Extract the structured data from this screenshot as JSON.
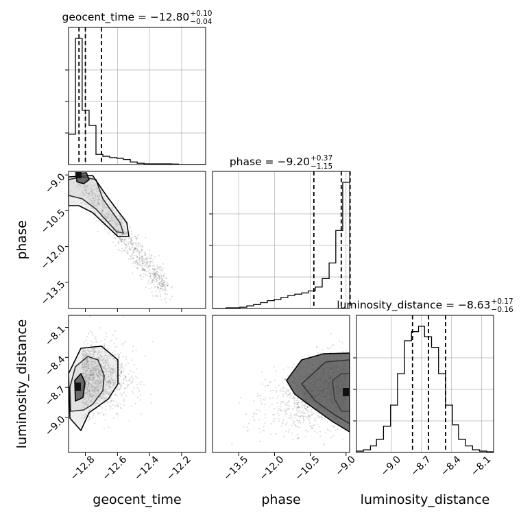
{
  "chart_data": {
    "type": "corner",
    "parameters": [
      "geocent_time",
      "phase",
      "luminosity_distance"
    ],
    "titles": [
      {
        "label": "geocent_time = ",
        "median": "−12.80",
        "plus": "+0.10",
        "minus": "−0.04"
      },
      {
        "label": "phase = ",
        "median": "−9.20",
        "plus": "+0.37",
        "minus": "−1.15"
      },
      {
        "label": "luminosity_distance = ",
        "median": "−8.63",
        "plus": "+0.17",
        "minus": "−0.16"
      }
    ],
    "ranges": {
      "geocent_time": [
        -12.905,
        -12.05
      ],
      "phase": [
        -14.6,
        -8.85
      ],
      "luminosity_distance": [
        -9.35,
        -7.98
      ]
    },
    "ticks": {
      "geocent_time": {
        "values": [
          -12.8,
          -12.6,
          -12.4,
          -12.2
        ],
        "labels": [
          "−12.8",
          "−12.6",
          "−12.4",
          "−12.2"
        ]
      },
      "phase": {
        "values": [
          -13.5,
          -12.0,
          -10.5,
          -9.0
        ],
        "labels": [
          "−13.5",
          "−12.0",
          "−10.5",
          "−9.0"
        ]
      },
      "luminosity_distance": {
        "values": [
          -9.0,
          -8.7,
          -8.4,
          -8.1
        ],
        "labels": [
          "−9.0",
          "−8.7",
          "−8.4",
          "−8.1"
        ]
      }
    },
    "quantiles": {
      "geocent_time": [
        -12.84,
        -12.8,
        -12.7
      ],
      "phase": [
        -10.35,
        -9.2,
        -8.83
      ],
      "luminosity_distance": [
        -8.79,
        -8.63,
        -8.46
      ]
    },
    "histograms": {
      "geocent_time": {
        "edges": [
          -12.905,
          -12.862,
          -12.82,
          -12.777,
          -12.734,
          -12.691,
          -12.648,
          -12.605,
          -12.563,
          -12.52,
          -12.477,
          -12.434,
          -12.391,
          -12.349,
          -12.306,
          -12.263,
          -12.22,
          -12.178,
          -12.135,
          -12.092,
          -12.049
        ],
        "counts": [
          0.24,
          1.0,
          0.43,
          0.31,
          0.08,
          0.065,
          0.055,
          0.05,
          0.04,
          0.02,
          0.01,
          0.005,
          0.005,
          0.005,
          0.005,
          0.004,
          0,
          0,
          0,
          0
        ]
      },
      "phase": {
        "edges": [
          -14.6,
          -14.31,
          -14.03,
          -13.74,
          -13.45,
          -13.16,
          -12.88,
          -12.59,
          -12.3,
          -12.01,
          -11.73,
          -11.44,
          -11.15,
          -10.86,
          -10.58,
          -10.29,
          -10.0,
          -9.71,
          -9.43,
          -9.14,
          -8.85
        ],
        "counts": [
          0,
          0,
          0.005,
          0.005,
          0.01,
          0.02,
          0.03,
          0.045,
          0.06,
          0.07,
          0.085,
          0.1,
          0.11,
          0.12,
          0.135,
          0.165,
          0.23,
          0.35,
          0.6,
          0.97
        ]
      },
      "luminosity_distance": {
        "edges": [
          -9.35,
          -9.28,
          -9.21,
          -9.15,
          -9.08,
          -9.01,
          -8.94,
          -8.87,
          -8.8,
          -8.73,
          -8.67,
          -8.6,
          -8.53,
          -8.46,
          -8.39,
          -8.33,
          -8.26,
          -8.19,
          -8.12,
          -8.05,
          -7.98
        ],
        "counts": [
          0.01,
          0.02,
          0.05,
          0.1,
          0.2,
          0.36,
          0.6,
          0.85,
          0.92,
          0.96,
          0.88,
          0.8,
          0.6,
          0.36,
          0.21,
          0.1,
          0.05,
          0.02,
          0.01,
          0.005
        ]
      }
    },
    "grid": true
  }
}
